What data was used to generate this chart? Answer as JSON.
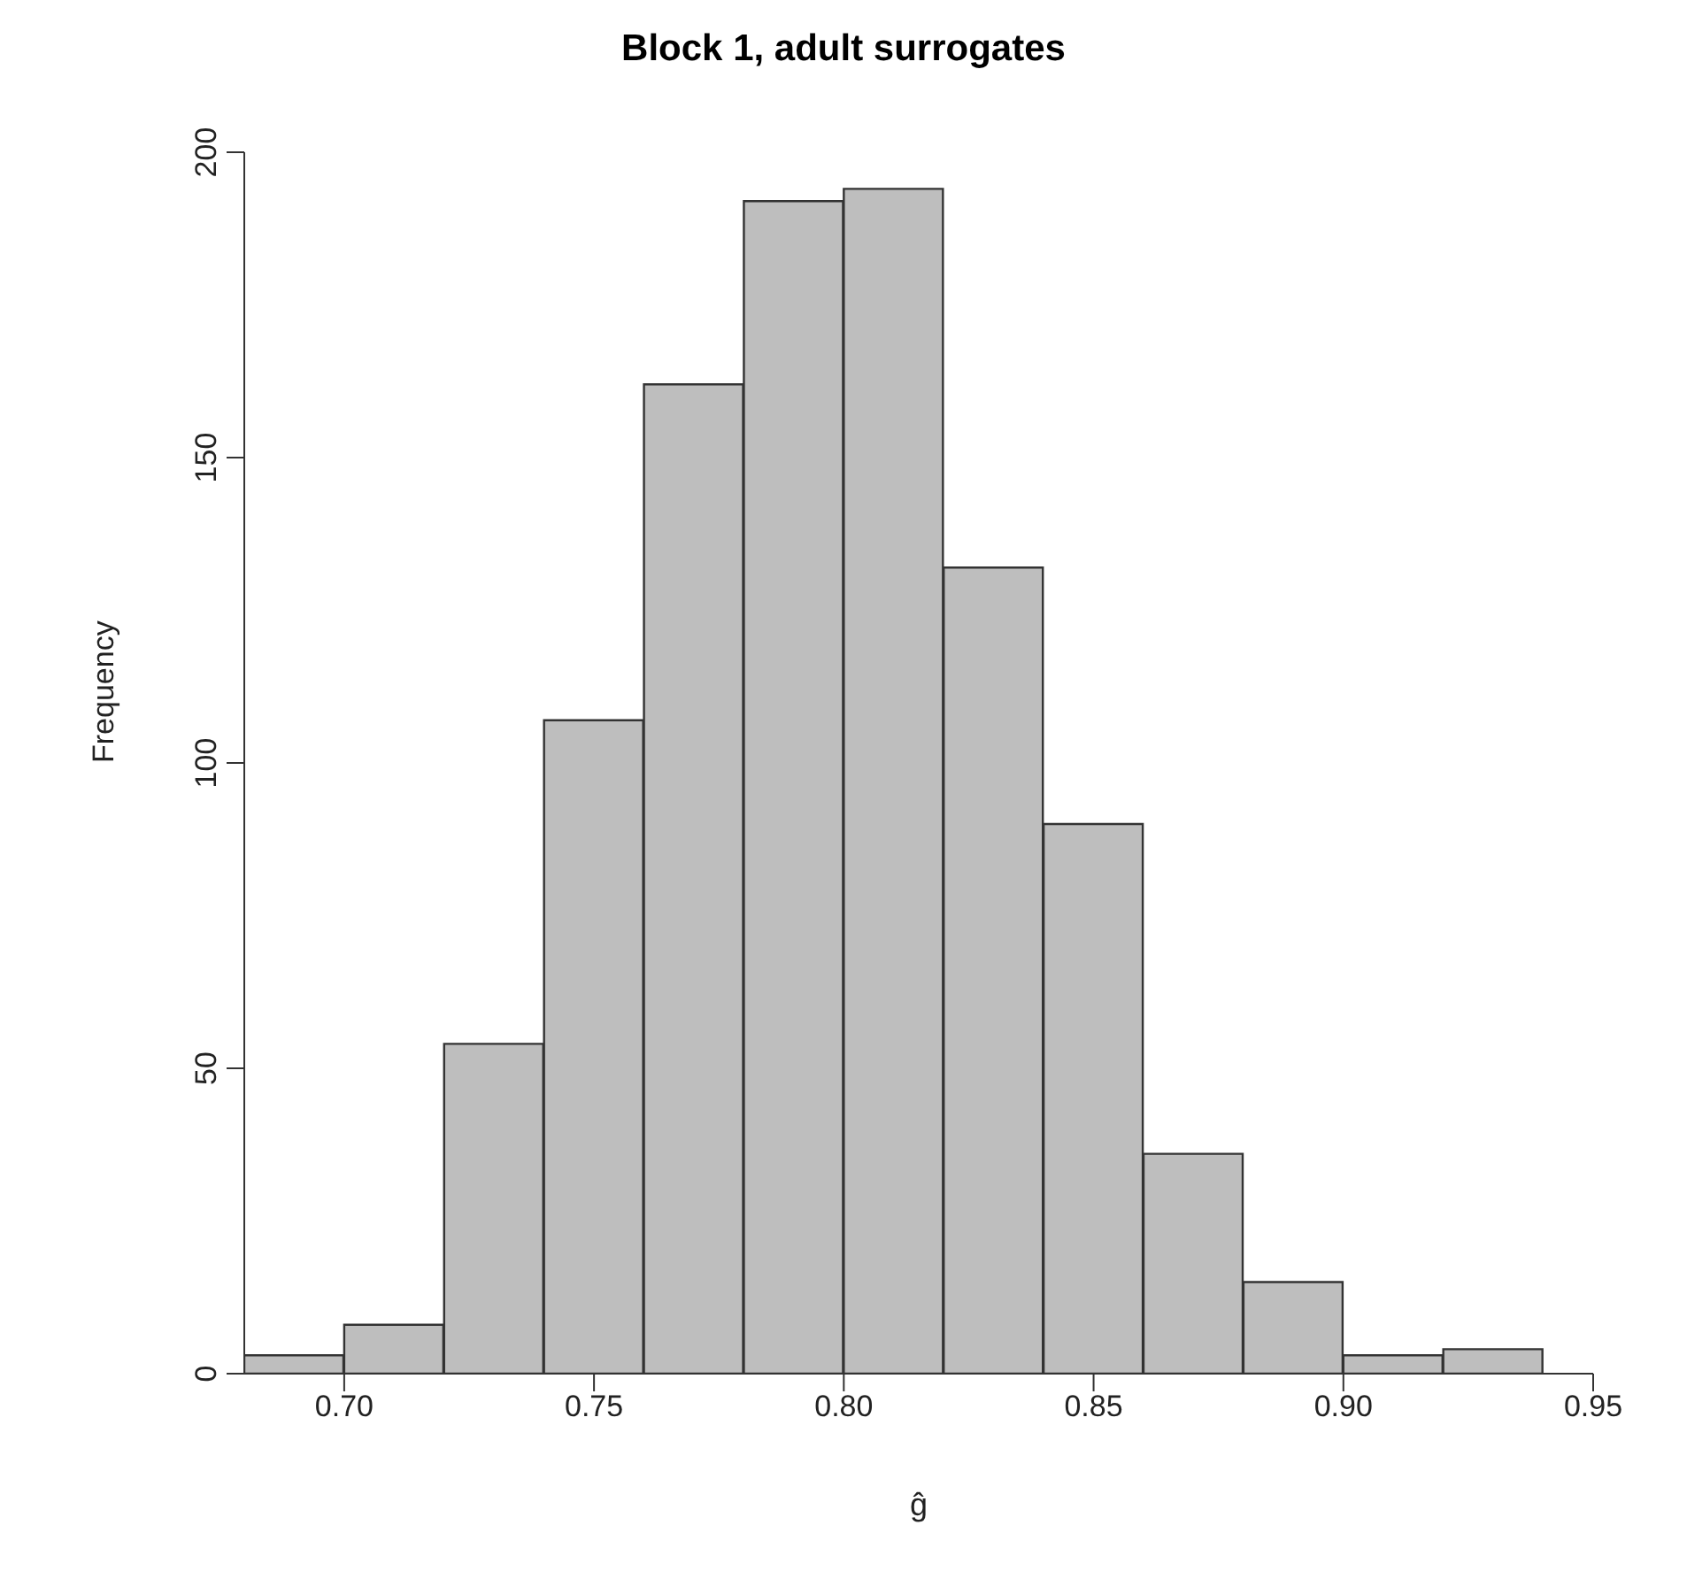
{
  "chart_data": {
    "type": "histogram",
    "title": "Block 1, adult surrogates",
    "xlabel": "ĝ",
    "ylabel": "Frequency",
    "bins": [
      0.68,
      0.7,
      0.72,
      0.74,
      0.76,
      0.78,
      0.8,
      0.82,
      0.84,
      0.86,
      0.88,
      0.9,
      0.92,
      0.94
    ],
    "values": [
      3,
      8,
      54,
      107,
      162,
      192,
      194,
      132,
      90,
      36,
      15,
      3,
      4
    ],
    "color": "#bebebe",
    "xlim": [
      0.68,
      0.95
    ],
    "xticks": [
      {
        "value": 0.7,
        "label": "0.70"
      },
      {
        "value": 0.75,
        "label": "0.75"
      },
      {
        "value": 0.8,
        "label": "0.80"
      },
      {
        "value": 0.85,
        "label": "0.85"
      },
      {
        "value": 0.9,
        "label": "0.90"
      },
      {
        "value": 0.95,
        "label": "0.95"
      }
    ],
    "ylim": [
      0,
      200
    ],
    "yticks": [
      0,
      50,
      100,
      150,
      200
    ],
    "grid": false,
    "legend": false
  }
}
